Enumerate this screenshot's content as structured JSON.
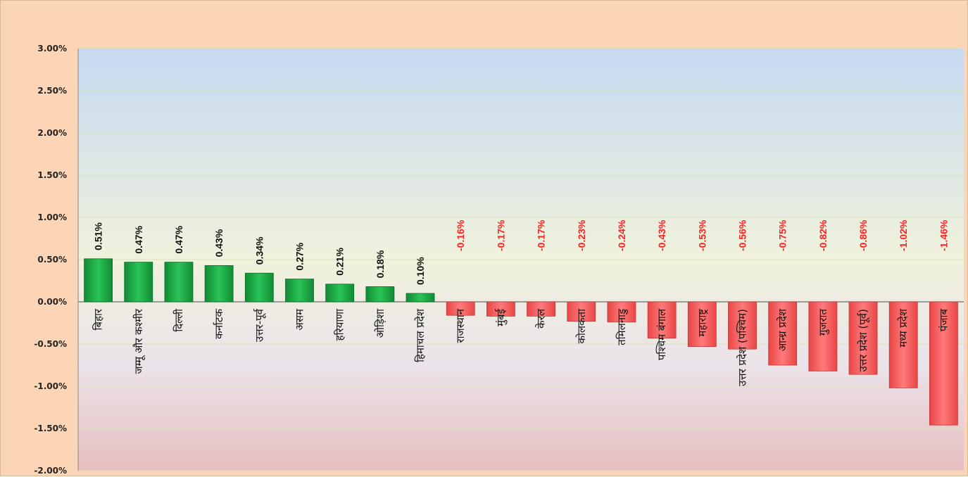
{
  "chart_data": {
    "type": "bar",
    "title": "",
    "xlabel": "",
    "ylabel": "",
    "ylim": [
      -0.02,
      0.03
    ],
    "y_ticks": [
      {
        "value": 0.03,
        "label": "3.00%"
      },
      {
        "value": 0.025,
        "label": "2.50%"
      },
      {
        "value": 0.02,
        "label": "2.00%"
      },
      {
        "value": 0.015,
        "label": "1.50%"
      },
      {
        "value": 0.01,
        "label": "1.00%"
      },
      {
        "value": 0.005,
        "label": "0.50%"
      },
      {
        "value": 0.0,
        "label": "0.00%"
      },
      {
        "value": -0.005,
        "label": "-0.50%"
      },
      {
        "value": -0.01,
        "label": "-1.00%"
      },
      {
        "value": -0.015,
        "label": "-1.50%"
      },
      {
        "value": -0.02,
        "label": "-2.00%"
      }
    ],
    "grid": true,
    "legend": "none",
    "categories": [
      "बिहार",
      "जम्मू और कश्मीर",
      "दिल्ली",
      "कर्नाटक",
      "उत्तर-पूर्व",
      "असम",
      "हरियाणा",
      "ओड़िशा",
      "हिमाचल प्रदेश",
      "राजस्थान",
      "मुंबई",
      "केरल",
      "कोलकता",
      "तमिलनाडु",
      "पश्चिम बंगाल",
      "महाराष्ट्र",
      "उत्तर प्रदेश (पश्चिम)",
      "आन्ध्र प्रदेश",
      "गुजरात",
      "उत्तर प्रदेश (पूर्व)",
      "मध्य प्रदेश",
      "पंजाब"
    ],
    "values": [
      0.0051,
      0.0047,
      0.0047,
      0.0043,
      0.0034,
      0.0027,
      0.0021,
      0.0018,
      0.001,
      -0.0016,
      -0.0017,
      -0.0017,
      -0.0023,
      -0.0024,
      -0.0043,
      -0.0053,
      -0.0056,
      -0.0075,
      -0.0082,
      -0.0086,
      -0.0102,
      -0.0146
    ],
    "data_labels": [
      "0.51%",
      "0.47%",
      "0.47%",
      "0.43%",
      "0.34%",
      "0.27%",
      "0.21%",
      "0.18%",
      "0.10%",
      "-0.16%",
      "-0.17%",
      "-0.17%",
      "-0.23%",
      "-0.24%",
      "-0.43%",
      "-0.53%",
      "-0.56%",
      "-0.75%",
      "-0.82%",
      "-0.86%",
      "-1.02%",
      "-1.46%"
    ],
    "colors": {
      "positive": "#22b14c",
      "negative": "#ff6666",
      "positive_label": "#111111",
      "negative_label": "#ff2020"
    }
  }
}
